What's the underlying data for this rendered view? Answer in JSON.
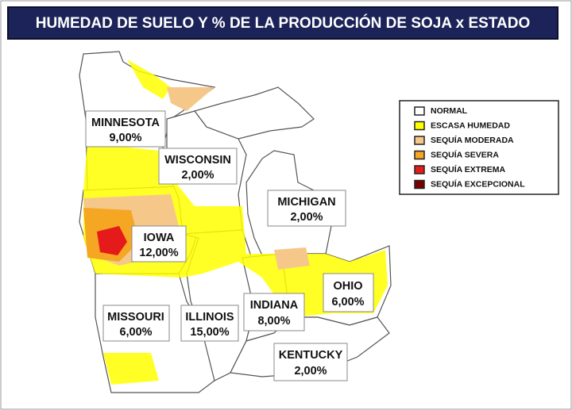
{
  "title": "HUMEDAD DE SUELO  Y % DE LA PRODUCCIÓN DE SOJA x ESTADO",
  "legend": {
    "items": [
      {
        "label": "NORMAL",
        "color": "#ffffff"
      },
      {
        "label": "ESCASA HUMEDAD",
        "color": "#ffff00"
      },
      {
        "label": "SEQUÍA MODERADA",
        "color": "#f5c88a"
      },
      {
        "label": "SEQUÍA SEVERA",
        "color": "#f5a623"
      },
      {
        "label": "SEQUÍA EXTREMA",
        "color": "#e51a1a"
      },
      {
        "label": "SEQUÍA EXCEPCIONAL",
        "color": "#7a0000"
      }
    ]
  },
  "states": [
    {
      "name": "MINNESOTA",
      "value": "9,00%"
    },
    {
      "name": "WISCONSIN",
      "value": "2,00%"
    },
    {
      "name": "MICHIGAN",
      "value": "2,00%"
    },
    {
      "name": "IOWA",
      "value": "12,00%"
    },
    {
      "name": "MISSOURI",
      "value": "6,00%"
    },
    {
      "name": "ILLINOIS",
      "value": "15,00%"
    },
    {
      "name": "INDIANA",
      "value": "8,00%"
    },
    {
      "name": "OHIO",
      "value": "6,00%"
    },
    {
      "name": "KENTUCKY",
      "value": "2,00%"
    }
  ]
}
